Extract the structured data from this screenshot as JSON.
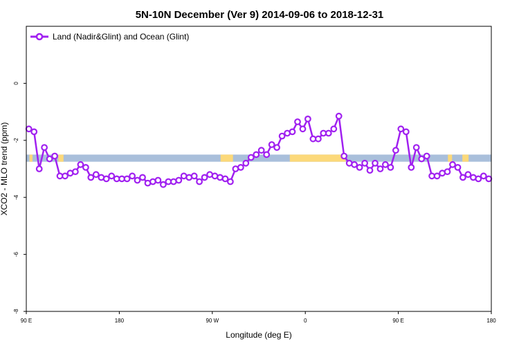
{
  "chart_data": {
    "type": "line",
    "title": "5N-10N December (Ver 9)   2014-09-06 to 2018-12-31",
    "xlabel": "Longitude (deg E)",
    "ylabel": "XCO2 - MLO trend (ppm)",
    "xlim": [
      90,
      540
    ],
    "ylim": [
      -8,
      2
    ],
    "x_ticks": [
      {
        "value": 90,
        "label": "90 E"
      },
      {
        "value": 180,
        "label": "180"
      },
      {
        "value": 270,
        "label": "90 W"
      },
      {
        "value": 360,
        "label": "0"
      },
      {
        "value": 450,
        "label": "90 E"
      },
      {
        "value": 540,
        "label": "180"
      }
    ],
    "y_ticks": [
      {
        "value": -8,
        "label": "-8"
      },
      {
        "value": -6,
        "label": "-6"
      },
      {
        "value": -4,
        "label": "-4"
      },
      {
        "value": -2,
        "label": "-2"
      },
      {
        "value": 0,
        "label": "0"
      }
    ],
    "grid": false,
    "legend": {
      "position": "top-left"
    },
    "colors": {
      "series": "#a020f0",
      "band_ocean": "#a9bfdb",
      "band_land": "#fcd97a"
    },
    "background_band": {
      "y_range": [
        -2.75,
        -2.5
      ],
      "description": "map strip at 5N-10N (ocean blue, land yellow)"
    },
    "land_segments": [
      [
        93,
        96
      ],
      [
        121,
        126
      ],
      [
        278,
        290
      ],
      [
        345,
        399
      ],
      [
        498,
        502
      ],
      [
        512,
        518
      ]
    ],
    "series": [
      {
        "name": "Land (Nadir&Glint) and Ocean (Glint)",
        "x": [
          92.5,
          97.5,
          102.5,
          107.5,
          112.5,
          117.5,
          122.5,
          127.5,
          132.5,
          137.5,
          142.5,
          147.5,
          152.5,
          157.5,
          162.5,
          167.5,
          172.5,
          177.5,
          182.5,
          187.5,
          192.5,
          197.5,
          202.5,
          207.5,
          212.5,
          217.5,
          222.5,
          227.5,
          232.5,
          237.5,
          242.5,
          247.5,
          252.5,
          257.5,
          262.5,
          267.5,
          272.5,
          277.5,
          282.5,
          287.5,
          292.5,
          297.5,
          302.5,
          307.5,
          312.5,
          317.5,
          322.5,
          327.5,
          332.5,
          337.5,
          342.5,
          347.5,
          352.5,
          357.5,
          362.5,
          367.5,
          372.5,
          377.5,
          382.5,
          387.5,
          392.5,
          397.5,
          402.5,
          407.5,
          412.5,
          417.5,
          422.5,
          427.5,
          432.5,
          437.5,
          442.5,
          447.5,
          452.5,
          457.5,
          462.5,
          467.5,
          472.5,
          477.5,
          482.5,
          487.5,
          492.5,
          497.5,
          502.5,
          507.5,
          512.5,
          517.5,
          522.5,
          527.5,
          532.5,
          537.5
        ],
        "values": [
          -1.6,
          -1.7,
          -3.0,
          -2.25,
          -2.65,
          -2.55,
          -3.25,
          -3.25,
          -3.15,
          -3.1,
          -2.85,
          -2.95,
          -3.3,
          -3.2,
          -3.3,
          -3.35,
          -3.25,
          -3.35,
          -3.35,
          -3.35,
          -3.25,
          -3.4,
          -3.3,
          -3.5,
          -3.45,
          -3.4,
          -3.55,
          -3.45,
          -3.45,
          -3.4,
          -3.25,
          -3.3,
          -3.25,
          -3.45,
          -3.3,
          -3.2,
          -3.25,
          -3.3,
          -3.35,
          -3.45,
          -3.0,
          -2.95,
          -2.8,
          -2.6,
          -2.5,
          -2.35,
          -2.5,
          -2.15,
          -2.25,
          -1.85,
          -1.75,
          -1.7,
          -1.35,
          -1.6,
          -1.25,
          -1.95,
          -1.95,
          -1.75,
          -1.75,
          -1.6,
          -1.15,
          -2.55,
          -2.8,
          -2.85,
          -2.95,
          -2.8,
          -3.05,
          -2.8,
          -3.0,
          -2.85,
          -2.95,
          -2.35,
          -1.6,
          -1.7,
          -2.95,
          -2.25,
          -2.65,
          -2.55,
          -3.25,
          -3.25,
          -3.15,
          -3.1,
          -2.85,
          -2.95,
          -3.3,
          -3.2,
          -3.3,
          -3.35,
          -3.25,
          -3.35
        ]
      }
    ]
  }
}
